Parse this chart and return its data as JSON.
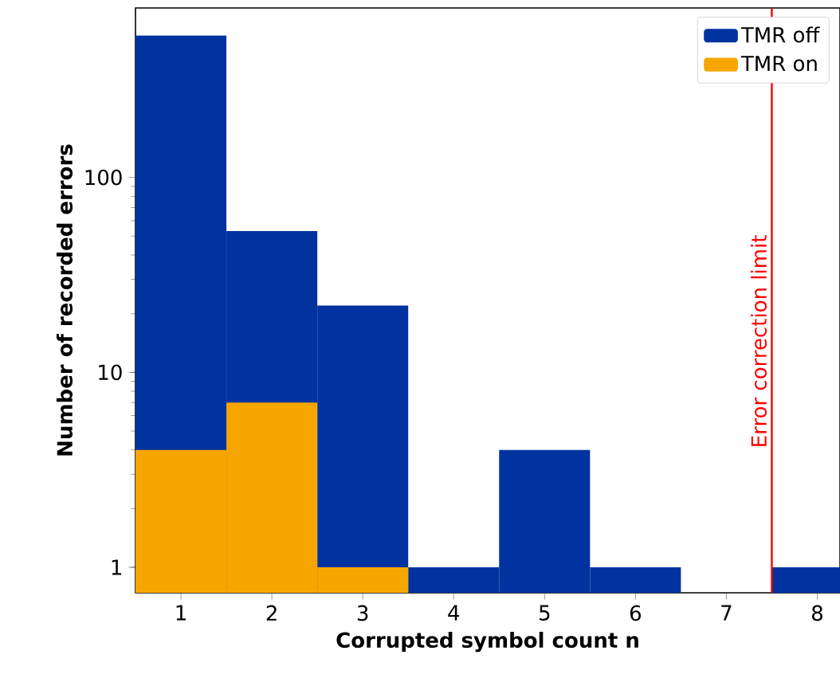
{
  "chart_data": {
    "type": "bar",
    "xlabel": "Corrupted symbol count n",
    "ylabel": "Number of recorded errors",
    "x": [
      1,
      2,
      3,
      4,
      5,
      6,
      7,
      8
    ],
    "series": [
      {
        "name": "TMR off",
        "color": "#0033a0",
        "values": [
          535,
          53,
          22,
          1,
          4,
          1,
          null,
          1
        ]
      },
      {
        "name": "TMR on",
        "color": "#f7a600",
        "values": [
          4,
          7,
          1,
          null,
          null,
          null,
          null,
          null
        ]
      }
    ],
    "xlim": [
      0.5,
      8.25
    ],
    "xticks": [
      1,
      2,
      3,
      4,
      5,
      6,
      7,
      8
    ],
    "ylim": [
      0.74,
      740
    ],
    "yticks": [
      1,
      10,
      100
    ],
    "log": "y",
    "grid": false,
    "legend": "top right",
    "ref_lines": [
      {
        "axis": "x",
        "value": 7.5,
        "label": "Error correction limit",
        "color": "#ff0000"
      }
    ]
  }
}
